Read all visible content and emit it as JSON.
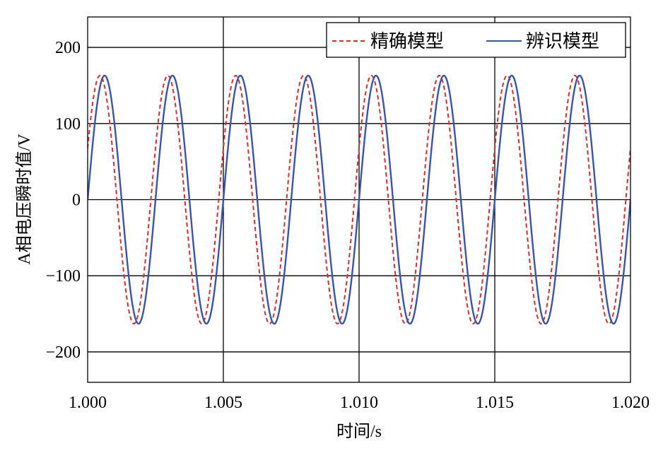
{
  "chart_data": {
    "type": "line",
    "title": "",
    "xlabel": "时间/s",
    "ylabel": "A相电压瞬时值/V",
    "xlim": [
      1.0,
      1.02
    ],
    "ylim": [
      -240,
      240
    ],
    "x_ticks": [
      "1.000",
      "1.005",
      "1.010",
      "1.015",
      "1.020"
    ],
    "x_tick_values": [
      1.0,
      1.005,
      1.01,
      1.015,
      1.02
    ],
    "y_ticks": [
      "200",
      "100",
      "0",
      "−100",
      "−200"
    ],
    "y_tick_values": [
      200,
      100,
      0,
      -100,
      -200
    ],
    "grid": true,
    "legend_position": "top-right",
    "series": [
      {
        "name": "精确模型",
        "style": "dashed",
        "color": "#d62f2f",
        "amplitude": 163,
        "frequency_hz": 400,
        "phase_lead_s": 0.00017
      },
      {
        "name": "辨识模型",
        "style": "solid",
        "color": "#3a55a4",
        "amplitude": 163,
        "frequency_hz": 400,
        "phase_lead_s": 0
      }
    ]
  }
}
